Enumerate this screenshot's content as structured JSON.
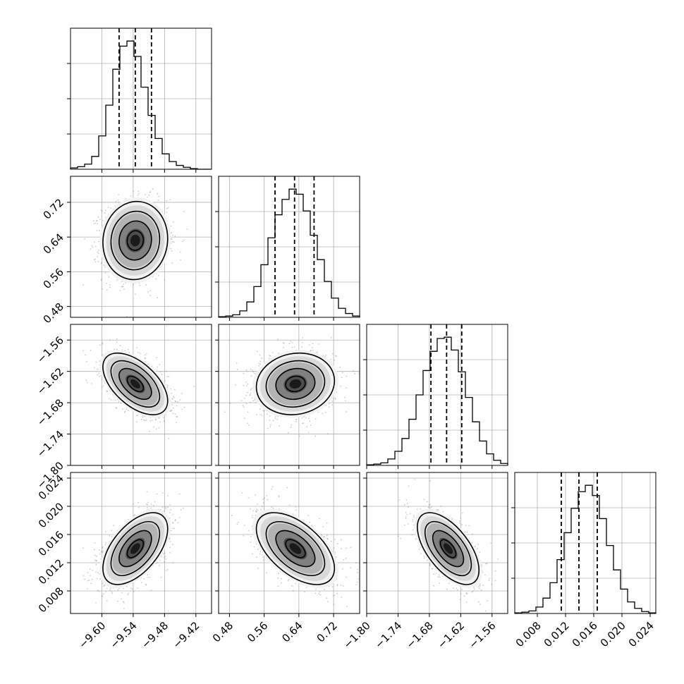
{
  "chart_data": {
    "type": "corner",
    "parameters": [
      {
        "range": [
          -9.66,
          -9.39
        ],
        "ticks": [
          -9.6,
          -9.54,
          -9.48,
          -9.42
        ],
        "tick_labels": [
          "−9.60",
          "−9.54",
          "−9.48",
          "−9.42"
        ],
        "quantiles": [
          -9.567,
          -9.536,
          -9.505
        ],
        "peak": -9.536
      },
      {
        "range": [
          0.455,
          0.78
        ],
        "ticks": [
          0.48,
          0.56,
          0.64,
          0.72
        ],
        "tick_labels": [
          "0.48",
          "0.56",
          "0.64",
          "0.72"
        ],
        "quantiles": [
          0.585,
          0.63,
          0.675
        ],
        "peak": 0.632
      },
      {
        "range": [
          -1.8,
          -1.53
        ],
        "ticks": [
          -1.8,
          -1.74,
          -1.68,
          -1.62,
          -1.56
        ],
        "tick_labels": [
          "−1.80",
          "−1.74",
          "−1.68",
          "−1.62",
          "−1.56"
        ],
        "quantiles": [
          -1.677,
          -1.647,
          -1.618
        ],
        "peak": -1.644
      },
      {
        "range": [
          0.0048,
          0.0248
        ],
        "ticks": [
          0.008,
          0.012,
          0.016,
          0.02,
          0.024
        ],
        "tick_labels": [
          "0.008",
          "0.012",
          "0.016",
          "0.020",
          "0.024"
        ],
        "quantiles": [
          0.0114,
          0.0139,
          0.0165
        ],
        "peak": 0.014
      }
    ],
    "histograms": [
      {
        "param": 0,
        "bins": 20,
        "counts": [
          0.01,
          0.02,
          0.04,
          0.1,
          0.26,
          0.5,
          0.78,
          0.96,
          1.0,
          0.88,
          0.64,
          0.42,
          0.24,
          0.12,
          0.06,
          0.03,
          0.015,
          0.005,
          0.0,
          0.0
        ]
      },
      {
        "param": 1,
        "bins": 20,
        "counts": [
          0.005,
          0.01,
          0.02,
          0.05,
          0.12,
          0.24,
          0.41,
          0.62,
          0.8,
          0.92,
          1.0,
          0.96,
          0.83,
          0.64,
          0.45,
          0.28,
          0.15,
          0.07,
          0.03,
          0.01
        ]
      },
      {
        "param": 2,
        "bins": 20,
        "counts": [
          0.005,
          0.01,
          0.02,
          0.05,
          0.11,
          0.21,
          0.36,
          0.55,
          0.74,
          0.89,
          0.99,
          1.0,
          0.9,
          0.73,
          0.53,
          0.34,
          0.19,
          0.09,
          0.04,
          0.015
        ]
      },
      {
        "param": 3,
        "bins": 20,
        "counts": [
          0.005,
          0.01,
          0.02,
          0.05,
          0.12,
          0.24,
          0.42,
          0.63,
          0.82,
          0.95,
          1.0,
          0.92,
          0.74,
          0.53,
          0.34,
          0.19,
          0.09,
          0.04,
          0.015,
          0.005
        ]
      }
    ],
    "pairs": [
      {
        "x": 0,
        "y": 1,
        "correlation": 0.05
      },
      {
        "x": 0,
        "y": 2,
        "correlation": -0.55
      },
      {
        "x": 1,
        "y": 2,
        "correlation": 0.1
      },
      {
        "x": 0,
        "y": 3,
        "correlation": 0.55
      },
      {
        "x": 1,
        "y": 3,
        "correlation": -0.55
      },
      {
        "x": 2,
        "y": 3,
        "correlation": -0.6
      }
    ],
    "grid": true,
    "contour_levels": [
      0.5,
      1.0,
      1.5,
      2.0
    ],
    "colors": {
      "line": "#000000",
      "grid": "#b0b0b0",
      "scatter": "#8c8c8c",
      "shade_dark": "#1a1a1a"
    }
  }
}
